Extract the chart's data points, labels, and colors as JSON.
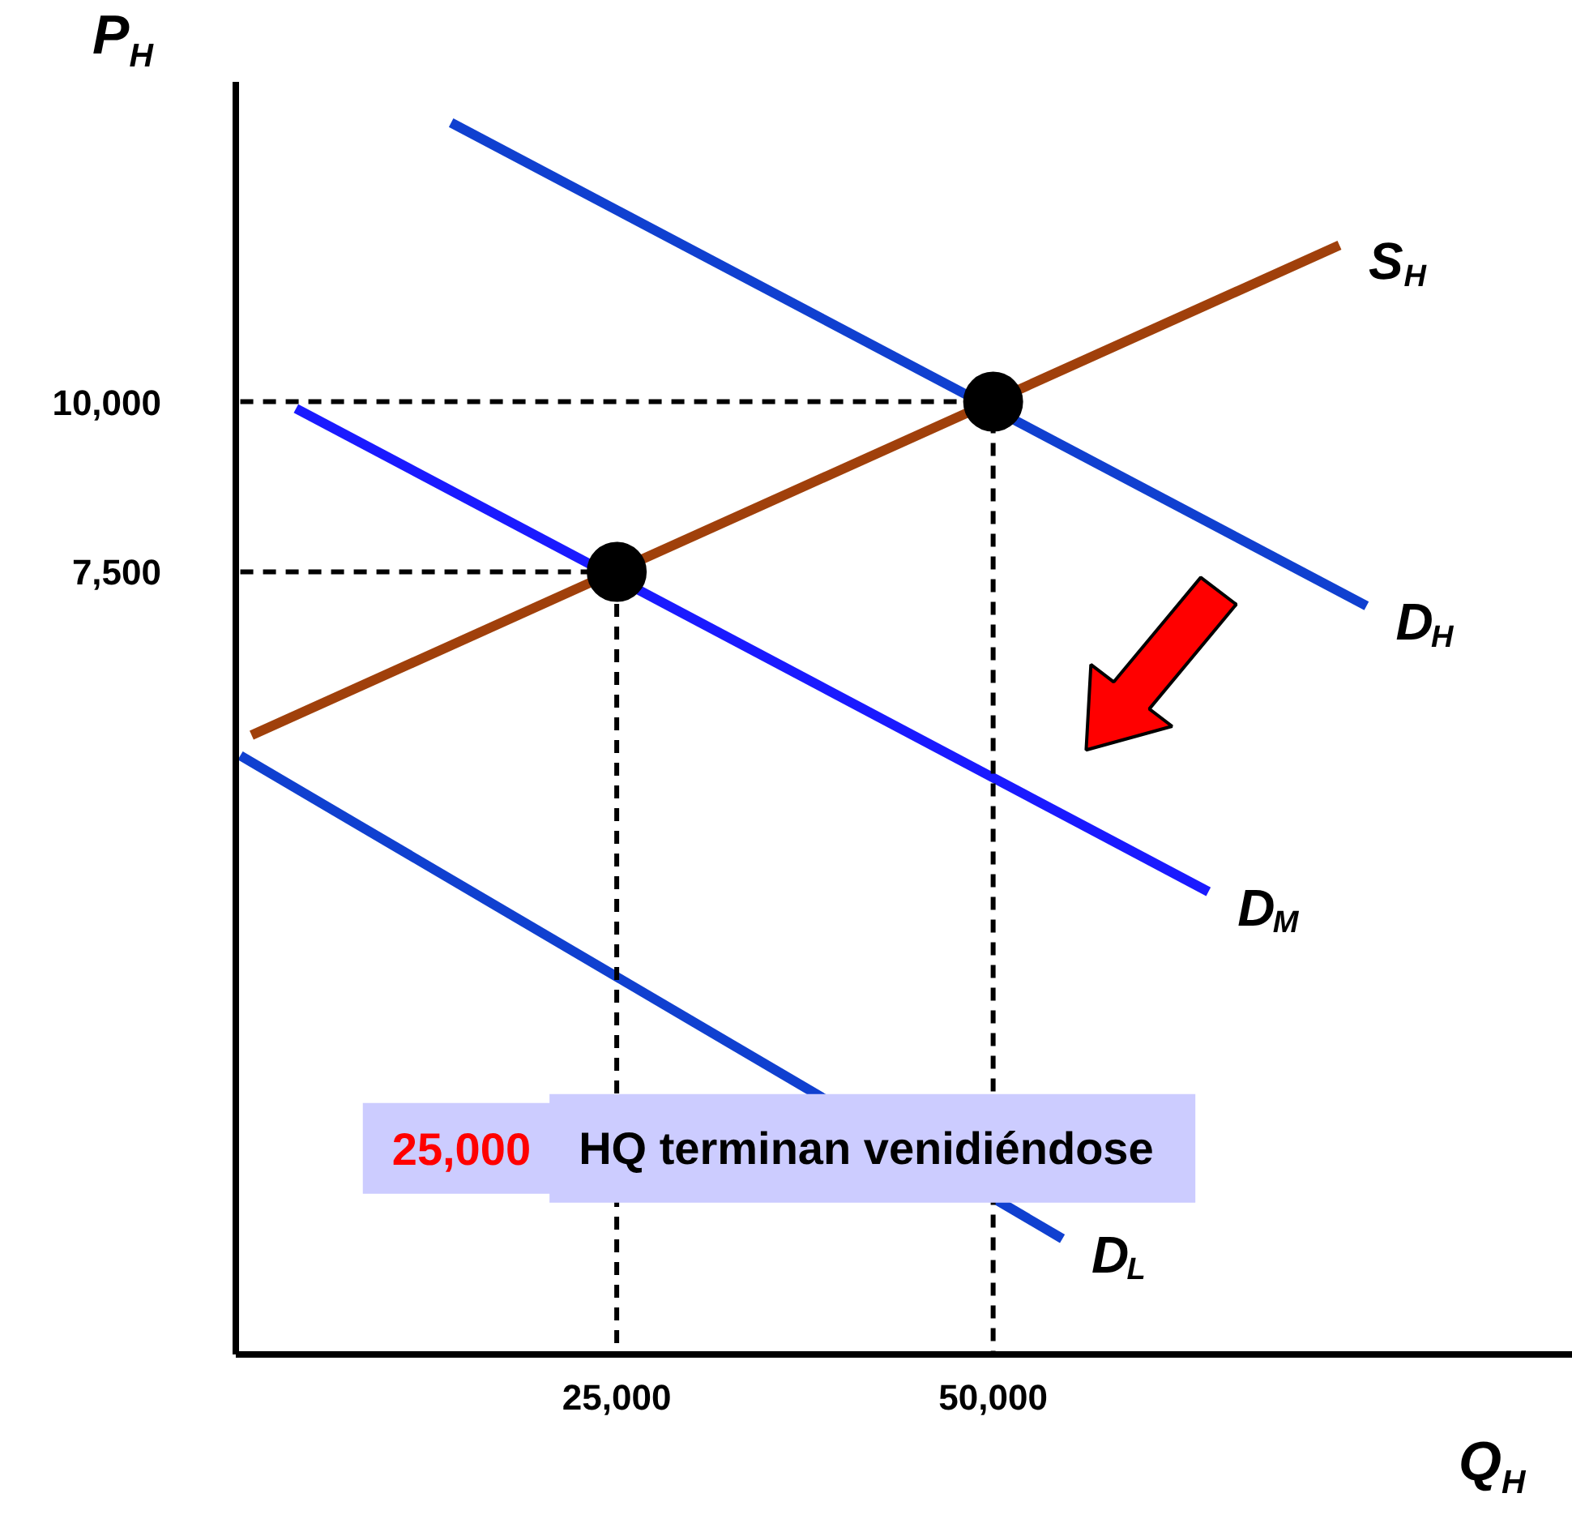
{
  "chart_data": {
    "type": "line",
    "xlabel": "Q$_{H}$",
    "ylabel": "P$_{H}$",
    "xlim": [
      -300,
      88500
    ],
    "ylim": [
      -4000,
      14700
    ],
    "xticks": [
      {
        "value": 25000,
        "label": "25,000"
      },
      {
        "value": 50000,
        "label": "50,000"
      }
    ],
    "yticks": [
      {
        "value": 7500,
        "label": "7,500"
      },
      {
        "value": 10000,
        "label": "10,000"
      }
    ],
    "grid": false,
    "series": [
      {
        "name": "S$_{H}$",
        "color": "#a0400b",
        "x": [
          750,
          73000
        ],
        "values": [
          5100,
          12300
        ]
      },
      {
        "name": "D$_{H}$",
        "color": "#1040d0",
        "x": [
          14000,
          74800
        ],
        "values": [
          14100,
          7000
        ]
      },
      {
        "name": "D$_{M}$",
        "color": "#1a1aff",
        "x": [
          3700,
          64300
        ],
        "values": [
          9900,
          2800
        ]
      },
      {
        "name": "D$_{L}$",
        "color": "#1040d0",
        "x": [
          0,
          54600
        ],
        "values": [
          4800,
          -2300
        ]
      },
      {
        "color": "#000000",
        "line_style": "dashed",
        "x": [
          0,
          50000,
          50000
        ],
        "values": [
          10000,
          10000,
          -4000
        ]
      },
      {
        "color": "#000000",
        "line_style": "dashed",
        "x": [
          0,
          25000,
          25000
        ],
        "values": [
          7500,
          7500,
          -4000
        ]
      },
      {
        "type": "scatter",
        "marker": "circle",
        "color": "#000000",
        "x": [
          25000,
          50000
        ],
        "values": [
          7500,
          10000
        ]
      }
    ],
    "annotations": [
      "25,000 HQ terminan venidiéndose"
    ]
  }
}
